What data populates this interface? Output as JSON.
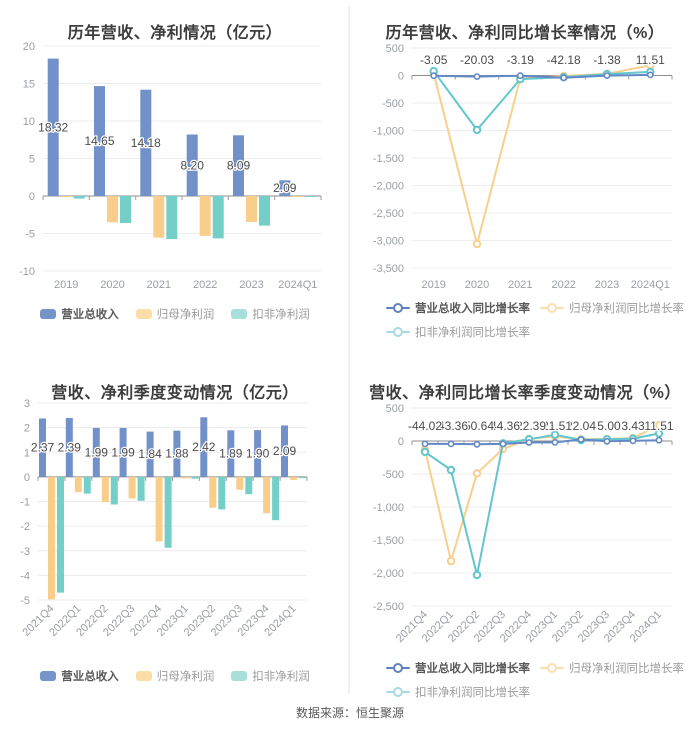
{
  "footer": {
    "source": "数据来源：恒生聚源"
  },
  "chart_data": [
    {
      "id": "annual-revenue-profit",
      "type": "bar",
      "title": "历年营收、净利情况（亿元）",
      "categories": [
        "2019",
        "2020",
        "2021",
        "2022",
        "2023",
        "2024Q1"
      ],
      "ylim": [
        -10,
        20
      ],
      "y_ticks": [
        {
          "v": 20,
          "label": "20"
        },
        {
          "v": 15,
          "label": "15"
        },
        {
          "v": 10,
          "label": "10"
        },
        {
          "v": 5,
          "label": "5"
        },
        {
          "v": 0,
          "label": "0"
        },
        {
          "v": -5,
          "label": "-5"
        },
        {
          "v": -10,
          "label": "-10"
        }
      ],
      "series": [
        {
          "name": "营业总收入",
          "slug": "revenue",
          "color": "#7291c9",
          "legend_color": "#7594ca",
          "values": [
            18.32,
            14.65,
            14.18,
            8.2,
            8.09,
            2.09
          ],
          "labels": [
            "18.32",
            "14.65",
            "14.18",
            "8.20",
            "8.09",
            "2.09"
          ]
        },
        {
          "name": "归母净利润",
          "slug": "net-profit",
          "color": "#f9ce8b",
          "legend_color": "#fbdda7",
          "values": [
            -0.15,
            -3.5,
            -5.55,
            -5.3,
            -3.45,
            -0.08
          ]
        },
        {
          "name": "扣非净利润",
          "slug": "non-gaap-net-profit",
          "color": "#74cfc8",
          "legend_color": "#a9dfdb",
          "values": [
            -0.35,
            -3.6,
            -5.75,
            -5.65,
            -3.95,
            -0.05
          ]
        }
      ]
    },
    {
      "id": "annual-growth-rate",
      "type": "line",
      "title": "历年营收、净利同比增长率情况（%）",
      "categories": [
        "2019",
        "2020",
        "2021",
        "2022",
        "2023",
        "2024Q1"
      ],
      "ylim": [
        -3500,
        500
      ],
      "y_ticks": [
        {
          "v": 500,
          "label": "500"
        },
        {
          "v": 0,
          "label": "0"
        },
        {
          "v": -500,
          "label": "-500"
        },
        {
          "v": -1000,
          "label": "-1,000"
        },
        {
          "v": -1500,
          "label": "-1,500"
        },
        {
          "v": -2000,
          "label": "-2,000"
        },
        {
          "v": -2500,
          "label": "-2,500"
        },
        {
          "v": -3000,
          "label": "-3,000"
        },
        {
          "v": -3500,
          "label": "-3,500"
        }
      ],
      "series": [
        {
          "name": "营业总收入同比增长率",
          "slug": "revenue-yoy-growth",
          "color": "#6288c5",
          "legend_color": "#5d80be",
          "values": [
            -3.05,
            -20.03,
            -3.19,
            -42.18,
            -1.38,
            11.51
          ],
          "labels": [
            "-3.05",
            "-20.03",
            "-3.19",
            "-42.18",
            "-1.38",
            "11.51"
          ]
        },
        {
          "name": "归母净利润同比增长率",
          "slug": "net-profit-yoy-growth",
          "color": "#f8cf8e",
          "legend_color": "#fbdfae",
          "values": [
            35,
            -3065,
            -55,
            -10,
            30,
            185
          ]
        },
        {
          "name": "扣非净利润同比增长率",
          "slug": "non-gaap-net-profit-yoy-growth",
          "color": "#63c6ce",
          "legend_color": "#a6d9e2",
          "values": [
            80,
            -990,
            -65,
            -30,
            25,
            65
          ]
        }
      ]
    },
    {
      "id": "quarterly-revenue-profit",
      "type": "bar",
      "title": "营收、净利季度变动情况（亿元）",
      "categories": [
        "2021Q4",
        "2022Q1",
        "2022Q2",
        "2022Q3",
        "2022Q4",
        "2023Q1",
        "2023Q2",
        "2023Q3",
        "2023Q4",
        "2024Q1"
      ],
      "ylim": [
        -5,
        3
      ],
      "y_ticks": [
        {
          "v": 3,
          "label": "3"
        },
        {
          "v": 2,
          "label": "2"
        },
        {
          "v": 1,
          "label": "1"
        },
        {
          "v": 0,
          "label": "0"
        },
        {
          "v": -1,
          "label": "-1"
        },
        {
          "v": -2,
          "label": "-2"
        },
        {
          "v": -3,
          "label": "-3"
        },
        {
          "v": -4,
          "label": "-4"
        },
        {
          "v": -5,
          "label": "-5"
        }
      ],
      "series": [
        {
          "name": "营业总收入",
          "slug": "revenue",
          "color": "#7291c9",
          "legend_color": "#7594ca",
          "values": [
            2.37,
            2.39,
            1.99,
            1.99,
            1.84,
            1.88,
            2.42,
            1.89,
            1.9,
            2.09
          ],
          "labels": [
            "2.37",
            "2.39",
            "1.99",
            "1.99",
            "1.84",
            "1.88",
            "2.42",
            "1.89",
            "1.90",
            "2.09"
          ]
        },
        {
          "name": "归母净利润",
          "slug": "net-profit",
          "color": "#f9ce8b",
          "legend_color": "#fbdda7",
          "values": [
            -4.97,
            -0.62,
            -1.02,
            -0.88,
            -2.62,
            -0.06,
            -1.25,
            -0.52,
            -1.48,
            -0.12
          ]
        },
        {
          "name": "扣非净利润",
          "slug": "non-gaap-net-profit",
          "color": "#74cfc8",
          "legend_color": "#a9dfdb",
          "values": [
            -4.7,
            -0.68,
            -1.12,
            -0.97,
            -2.88,
            -0.07,
            -1.32,
            -0.7,
            -1.76,
            -0.05
          ]
        }
      ]
    },
    {
      "id": "quarterly-growth-rate",
      "type": "line",
      "title": "营收、净利同比增长率季度变动情况（%）",
      "categories": [
        "2021Q4",
        "2022Q1",
        "2022Q2",
        "2022Q3",
        "2022Q4",
        "2023Q1",
        "2023Q2",
        "2023Q3",
        "2023Q4",
        "2024Q1"
      ],
      "ylim": [
        -2500,
        500
      ],
      "y_ticks": [
        {
          "v": 500,
          "label": "500"
        },
        {
          "v": 0,
          "label": "0"
        },
        {
          "v": -500,
          "label": "-500"
        },
        {
          "v": -1000,
          "label": "-1,000"
        },
        {
          "v": -1500,
          "label": "-1,500"
        },
        {
          "v": -2000,
          "label": "-2,000"
        },
        {
          "v": -2500,
          "label": "-2,500"
        }
      ],
      "series": [
        {
          "name": "营业总收入同比增长率",
          "slug": "revenue-yoy-growth",
          "color": "#6288c5",
          "legend_color": "#5d80be",
          "values": [
            -44.02,
            -43.36,
            -50.64,
            -44.36,
            -22.39,
            -21.51,
            22.04,
            -5.0,
            3.43,
            11.51
          ],
          "labels": [
            "-44.02",
            "-43.36",
            "-50.64",
            "-44.36",
            "-22.39",
            "-21.51",
            "22.04",
            "-5.00",
            "3.43",
            "11.51"
          ]
        },
        {
          "name": "归母净利润同比增长率",
          "slug": "net-profit-yoy-growth",
          "color": "#f8cf8e",
          "legend_color": "#fbdfae",
          "values": [
            -130,
            -1820,
            -490,
            -120,
            30,
            70,
            25,
            30,
            45,
            240
          ]
        },
        {
          "name": "扣非净利润同比增长率",
          "slug": "non-gaap-net-profit-yoy-growth",
          "color": "#63c6ce",
          "legend_color": "#a6d9e2",
          "values": [
            -165,
            -440,
            -2030,
            -35,
            25,
            95,
            15,
            25,
            35,
            115
          ]
        }
      ]
    }
  ]
}
